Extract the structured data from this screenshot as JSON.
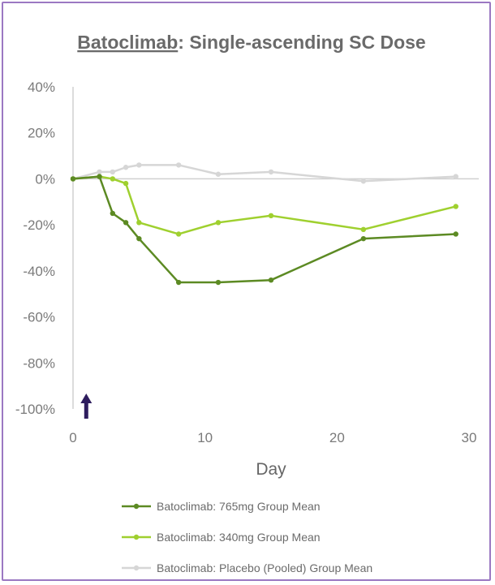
{
  "chart_data": {
    "type": "line",
    "title_prefix": "Batoclimab",
    "title_suffix": ": Single-ascending SC Dose",
    "xlabel": "Day",
    "ylabel": "",
    "xlim": [
      0,
      30
    ],
    "ylim": [
      -100,
      40
    ],
    "x_ticks": [
      0,
      10,
      20,
      30
    ],
    "y_ticks": [
      40,
      20,
      0,
      -20,
      -40,
      -60,
      -80,
      -100
    ],
    "y_tick_format": "percent",
    "grid": false,
    "legend_position": "bottom",
    "annotation": {
      "type": "arrow",
      "x": 1,
      "color": "#2e1d5e"
    },
    "series": [
      {
        "name": "Batoclimab: 765mg Group Mean",
        "color": "#5c8a23",
        "x": [
          0,
          2,
          3,
          4,
          5,
          8,
          11,
          15,
          22,
          29
        ],
        "values": [
          0,
          1,
          -15,
          -19,
          -26,
          -45,
          -45,
          -44,
          -26,
          -24
        ]
      },
      {
        "name": "Batoclimab: 340mg Group Mean",
        "color": "#9fd02f",
        "x": [
          0,
          2,
          3,
          4,
          5,
          8,
          11,
          15,
          22,
          29
        ],
        "values": [
          0,
          1,
          0,
          -2,
          -19,
          -24,
          -19,
          -16,
          -22,
          -12
        ]
      },
      {
        "name": "Batoclimab: Placebo (Pooled) Group Mean",
        "color": "#d6d6d6",
        "x": [
          0,
          2,
          3,
          4,
          5,
          8,
          11,
          15,
          22,
          29
        ],
        "values": [
          0,
          3,
          3,
          5,
          6,
          6,
          2,
          3,
          -1,
          1
        ]
      }
    ]
  }
}
